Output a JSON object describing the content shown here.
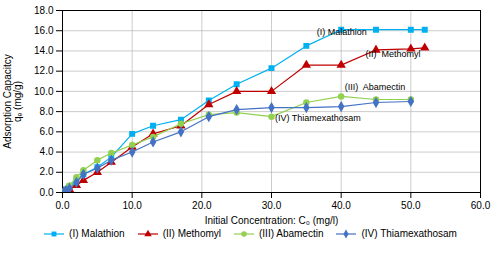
{
  "chart_data": {
    "type": "line",
    "xlabel": "Initial Concentration: C₀ (mg/l)",
    "ylabel": "Adsorption Capacitcy\nqₑ (mg/g)",
    "xlim": [
      0,
      60
    ],
    "ylim": [
      0,
      18
    ],
    "xticks": [
      {
        "value": 0,
        "label": "0.0"
      },
      {
        "value": 10,
        "label": "10.0"
      },
      {
        "value": 20,
        "label": "20.0"
      },
      {
        "value": 30,
        "label": "30.0"
      },
      {
        "value": 40,
        "label": "40.0"
      },
      {
        "value": 50,
        "label": "50.0"
      },
      {
        "value": 60,
        "label": "60.0"
      }
    ],
    "yticks": [
      {
        "value": 0,
        "label": "0.0"
      },
      {
        "value": 2,
        "label": "2.0"
      },
      {
        "value": 4,
        "label": "4.0"
      },
      {
        "value": 6,
        "label": "6.0"
      },
      {
        "value": 8,
        "label": "8.0"
      },
      {
        "value": 10,
        "label": "10.0"
      },
      {
        "value": 12,
        "label": "12.0"
      },
      {
        "value": 14,
        "label": "14.0"
      },
      {
        "value": 16,
        "label": "16.0"
      },
      {
        "value": 18,
        "label": "18.0"
      }
    ],
    "grid": true,
    "series": [
      {
        "name": "(I) Malathion",
        "color": "#00b0f0",
        "marker": "square",
        "x": [
          0.2,
          0.5,
          1.0,
          2.0,
          3.0,
          5.0,
          7.0,
          10.0,
          13.0,
          17.0,
          21.0,
          25.0,
          30.0,
          35.0,
          40.0,
          45.0,
          50.0,
          52.0
        ],
        "values": [
          0.1,
          0.3,
          0.6,
          1.2,
          1.8,
          2.5,
          3.5,
          5.8,
          6.6,
          7.2,
          9.1,
          10.7,
          12.3,
          14.5,
          16.1,
          16.1,
          16.1,
          16.1
        ]
      },
      {
        "name": "(II) Methomyl",
        "color": "#c00000",
        "marker": "triangle",
        "x": [
          0.2,
          0.5,
          1.0,
          2.0,
          3.0,
          5.0,
          7.0,
          10.0,
          13.0,
          17.0,
          21.0,
          25.0,
          30.0,
          35.0,
          40.0,
          45.0,
          50.0,
          52.0
        ],
        "values": [
          0.05,
          0.15,
          0.3,
          0.7,
          1.2,
          2.0,
          3.0,
          4.5,
          5.8,
          6.6,
          8.7,
          10.0,
          10.0,
          12.6,
          12.6,
          14.1,
          14.2,
          14.3
        ]
      },
      {
        "name": "(III) Abamectin",
        "color": "#92d050",
        "marker": "circle",
        "x": [
          0.2,
          0.5,
          1.0,
          2.0,
          3.0,
          5.0,
          7.0,
          10.0,
          13.0,
          17.0,
          21.0,
          25.0,
          30.0,
          35.0,
          40.0,
          45.0,
          50.0
        ],
        "values": [
          0.1,
          0.3,
          0.7,
          1.5,
          2.2,
          3.2,
          3.9,
          4.7,
          5.5,
          6.8,
          7.7,
          7.9,
          7.5,
          8.9,
          9.5,
          9.2,
          9.2
        ]
      },
      {
        "name": "(IV) Thiamexathosam",
        "color": "#4472c4",
        "marker": "diamond",
        "x": [
          0.2,
          0.5,
          1.0,
          2.0,
          3.0,
          5.0,
          7.0,
          10.0,
          13.0,
          17.0,
          21.0,
          25.0,
          30.0,
          35.0,
          40.0,
          45.0,
          50.0
        ],
        "values": [
          0.05,
          0.2,
          0.4,
          1.0,
          1.8,
          2.4,
          3.2,
          4.0,
          5.0,
          6.0,
          7.5,
          8.2,
          8.4,
          8.4,
          8.5,
          8.9,
          9.0
        ]
      }
    ],
    "annotations": [
      {
        "text": "(I) Malathion",
        "x": 36.5,
        "y": 15.6
      },
      {
        "text": "(II)  Methomyl",
        "x": 43.5,
        "y": 13.4
      },
      {
        "text": "(III)  Abamectin",
        "x": 40.5,
        "y": 10.1
      },
      {
        "text": "(IV) Thiamexathosam",
        "x": 30.5,
        "y": 7.05
      }
    ]
  }
}
